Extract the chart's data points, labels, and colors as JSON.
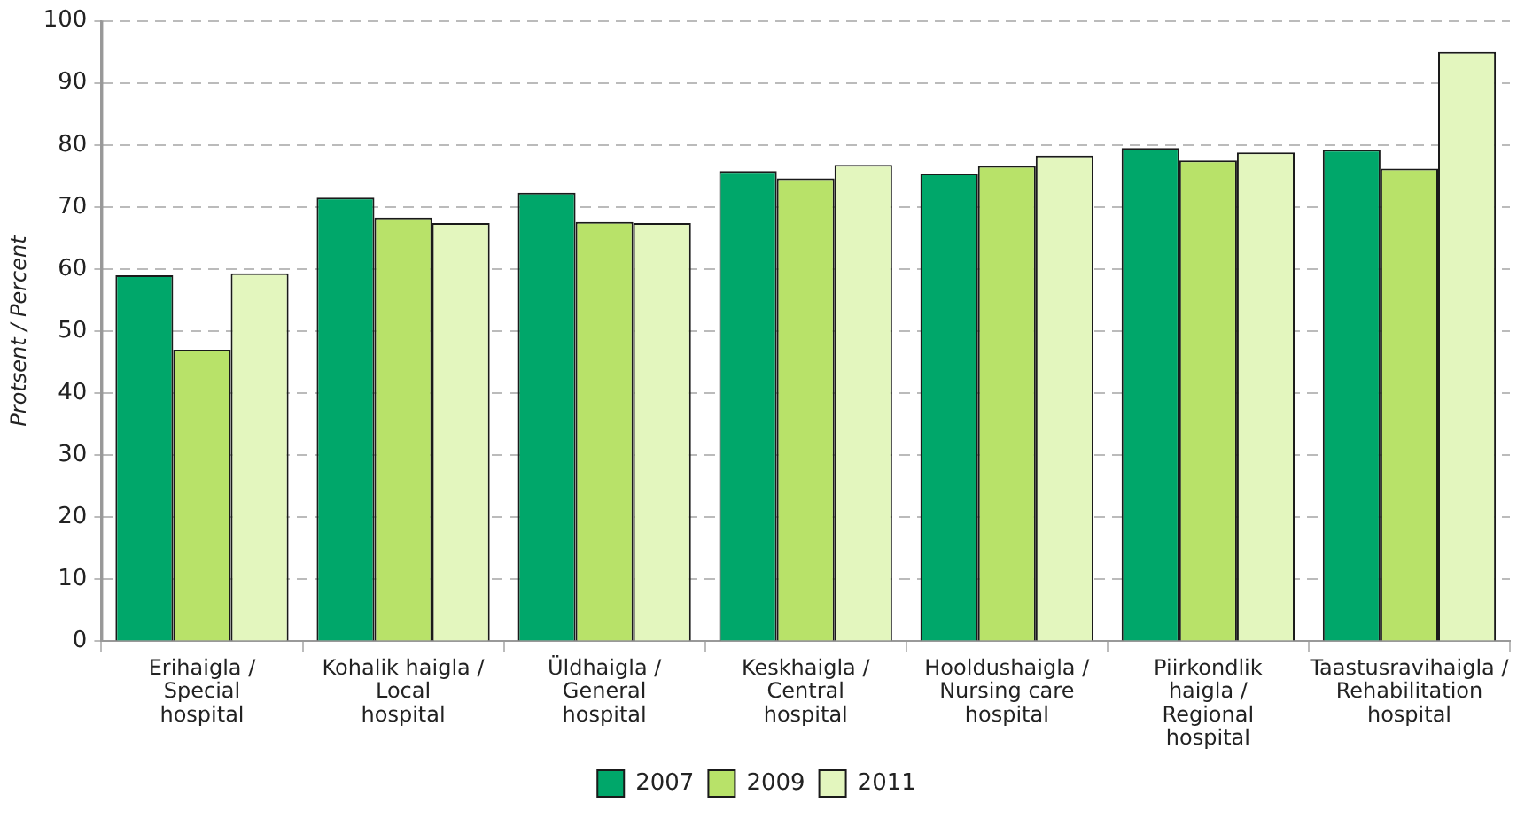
{
  "chart_data": {
    "type": "bar",
    "ylabel": "Protsent / Percent",
    "categories": [
      "Erihaigla /\nSpecial\nhospital",
      "Kohalik haigla /\nLocal\nhospital",
      "Üldhaigla /\nGeneral\nhospital",
      "Keskhaigla /\nCentral\nhospital",
      "Hooldushaigla /\nNursing care\nhospital",
      "Piirkondlik\nhaigla /\nRegional\nhospital",
      "Taastusravihaigla /\nRehabilitation\nhospital"
    ],
    "series": [
      {
        "name": "2007",
        "color": "#00a76a",
        "values": [
          59,
          71.5,
          72.3,
          75.8,
          75.4,
          79.5,
          79.2
        ]
      },
      {
        "name": "2009",
        "color": "#b8e269",
        "values": [
          47,
          68.3,
          67.6,
          74.6,
          76.6,
          77.5,
          76.2
        ]
      },
      {
        "name": "2011",
        "color": "#e3f6be",
        "values": [
          59.3,
          67.4,
          67.4,
          76.8,
          78.3,
          78.8,
          95
        ]
      }
    ],
    "ylim": [
      0,
      100
    ],
    "yticks": [
      0,
      10,
      20,
      30,
      40,
      50,
      60,
      70,
      80,
      90,
      100
    ],
    "grid": "y",
    "legend": "bottom"
  }
}
